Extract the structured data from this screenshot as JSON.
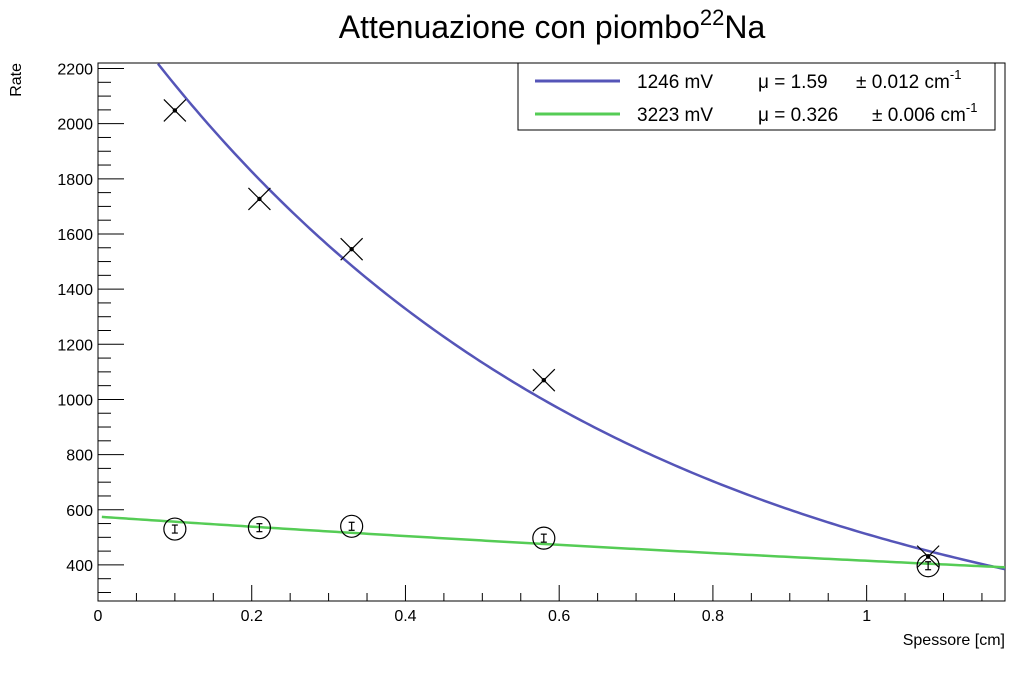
{
  "chart_data": {
    "type": "scatter",
    "title": "Attenuazione con piombo",
    "title_superscript": "22",
    "title_suffix": "Na",
    "xlabel": "Spessore [cm]",
    "ylabel": "Rate",
    "xlim": [
      0,
      1.18
    ],
    "ylim": [
      280,
      2220
    ],
    "x_ticks": [
      0,
      0.2,
      0.4,
      0.6,
      0.8,
      1
    ],
    "x_tick_labels": [
      "0",
      "0.2",
      "0.4",
      "0.6",
      "0.8",
      "1"
    ],
    "y_ticks": [
      400,
      600,
      800,
      1000,
      1200,
      1400,
      1600,
      1800,
      2000,
      2200
    ],
    "y_tick_labels": [
      "400",
      "600",
      "800",
      "1000",
      "1200",
      "1400",
      "1600",
      "1800",
      "2000",
      "2200"
    ],
    "grid": false,
    "legend_position": "top-right",
    "series": [
      {
        "name": "1246 mV",
        "legend_mu": "μ = 1.59",
        "legend_err": "± 0.012 cm",
        "legend_sup": "-1",
        "color": "#5555b8",
        "marker": "cross",
        "x": [
          0.1,
          0.21,
          0.33,
          0.58,
          1.08
        ],
        "y": [
          2048,
          1727,
          1545,
          1070,
          430
        ],
        "fit": {
          "A": 2510,
          "mu": 1.59,
          "x_range": [
            0.078,
            1.18
          ]
        }
      },
      {
        "name": "3223 mV",
        "legend_mu": "μ = 0.326",
        "legend_err": "± 0.006 cm",
        "legend_sup": "-1",
        "color": "#55cc55",
        "marker": "circle",
        "x": [
          0.1,
          0.21,
          0.33,
          0.58,
          1.08
        ],
        "y": [
          530,
          535,
          540,
          497,
          397
        ],
        "fit": {
          "A": 575,
          "mu": 0.326,
          "x_range": [
            0.005,
            1.18
          ]
        }
      }
    ]
  }
}
